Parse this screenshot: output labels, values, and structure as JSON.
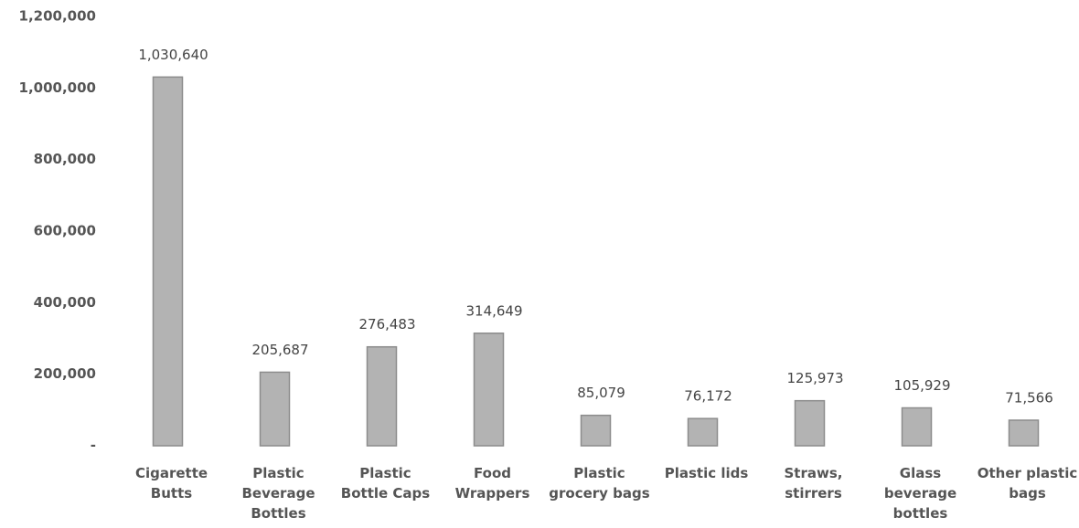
{
  "chart_data": {
    "type": "bar",
    "categories": [
      "Cigarette Butts",
      "Plastic Beverage Bottles",
      "Plastic Bottle Caps",
      "Food Wrappers",
      "Plastic grocery bags",
      "Plastic lids",
      "Straws, stirrers",
      "Glass beverage bottles",
      "Other plastic bags"
    ],
    "values": [
      1030640,
      205687,
      276483,
      314649,
      85079,
      76172,
      125973,
      105929,
      71566
    ],
    "value_labels": [
      "1,030,640",
      "205,687",
      "276,483",
      "314,649",
      "85,079",
      "76,172",
      "125,973",
      "105,929",
      "71,566"
    ],
    "color": "#b3b3b3",
    "ylim": [
      0,
      1200000
    ],
    "yticks": [
      {
        "value": 0,
        "label": "-"
      },
      {
        "value": 200000,
        "label": "200,000"
      },
      {
        "value": 400000,
        "label": "400,000"
      },
      {
        "value": 600000,
        "label": "600,000"
      },
      {
        "value": 800000,
        "label": "800,000"
      },
      {
        "value": 1000000,
        "label": "1,000,000"
      },
      {
        "value": 1200000,
        "label": "1,200,000"
      }
    ],
    "grid": false
  }
}
